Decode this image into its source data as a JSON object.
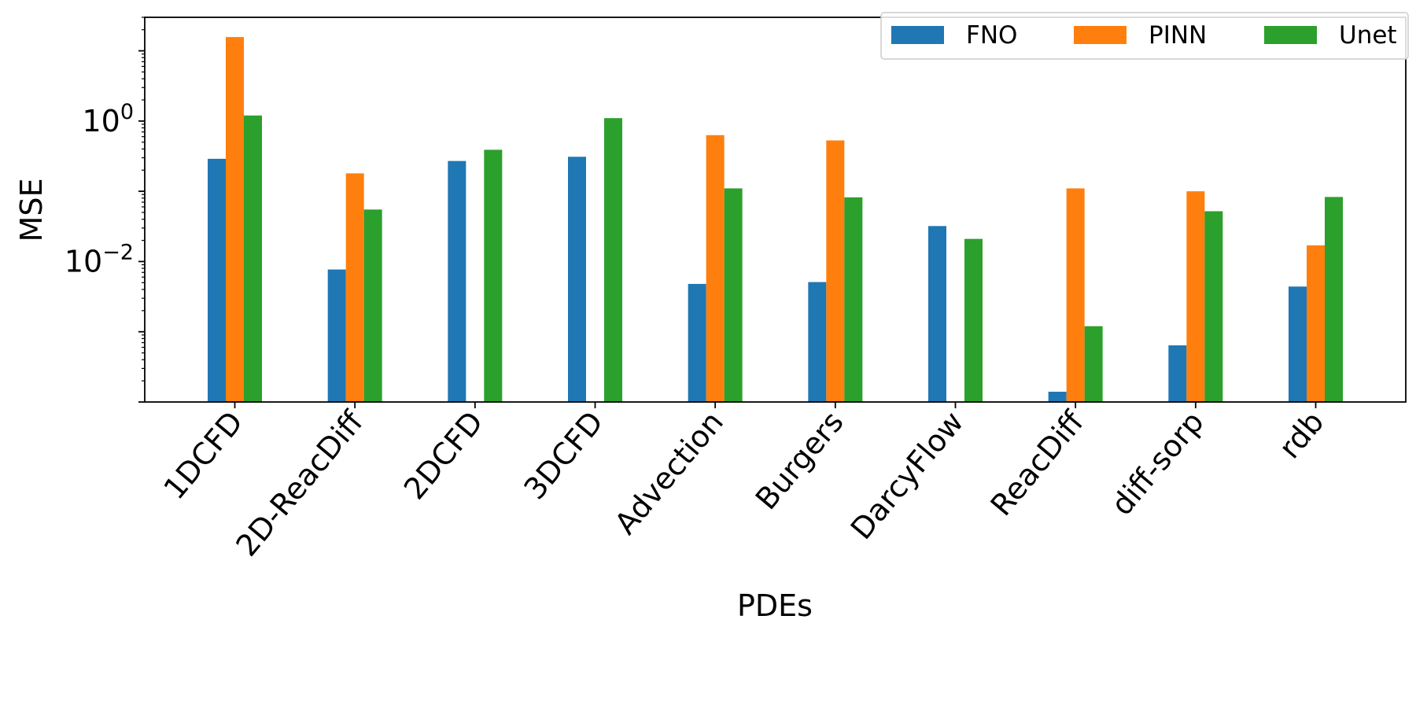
{
  "chart_data": {
    "type": "bar",
    "xlabel": "PDEs",
    "ylabel": "MSE",
    "yscale": "log",
    "ylim": [
      0.0001,
      30
    ],
    "yticks": [
      {
        "value": 1,
        "base": "10",
        "exp": "0"
      },
      {
        "value": 0.01,
        "base": "10",
        "exp": "−2"
      }
    ],
    "categories": [
      "1DCFD",
      "2D-ReacDiff",
      "2DCFD",
      "3DCFD",
      "Advection",
      "Burgers",
      "DarcyFlow",
      "ReacDiff",
      "diff-sorp",
      "rdb"
    ],
    "series": [
      {
        "name": "FNO",
        "color": "#1f77b4",
        "values": [
          0.29,
          0.0077,
          0.27,
          0.31,
          0.0048,
          0.0051,
          0.032,
          0.00014,
          0.00064,
          0.0044
        ]
      },
      {
        "name": "PINN",
        "color": "#ff7f0e",
        "values": [
          15.7,
          0.18,
          null,
          null,
          0.63,
          0.53,
          null,
          0.11,
          0.1,
          0.017
        ]
      },
      {
        "name": "Unet",
        "color": "#2ca02c",
        "values": [
          1.2,
          0.055,
          0.39,
          1.1,
          0.11,
          0.082,
          0.021,
          0.0012,
          0.052,
          0.083
        ]
      }
    ],
    "legend": {
      "position": "top-right",
      "columns": 3
    },
    "grid": false
  }
}
